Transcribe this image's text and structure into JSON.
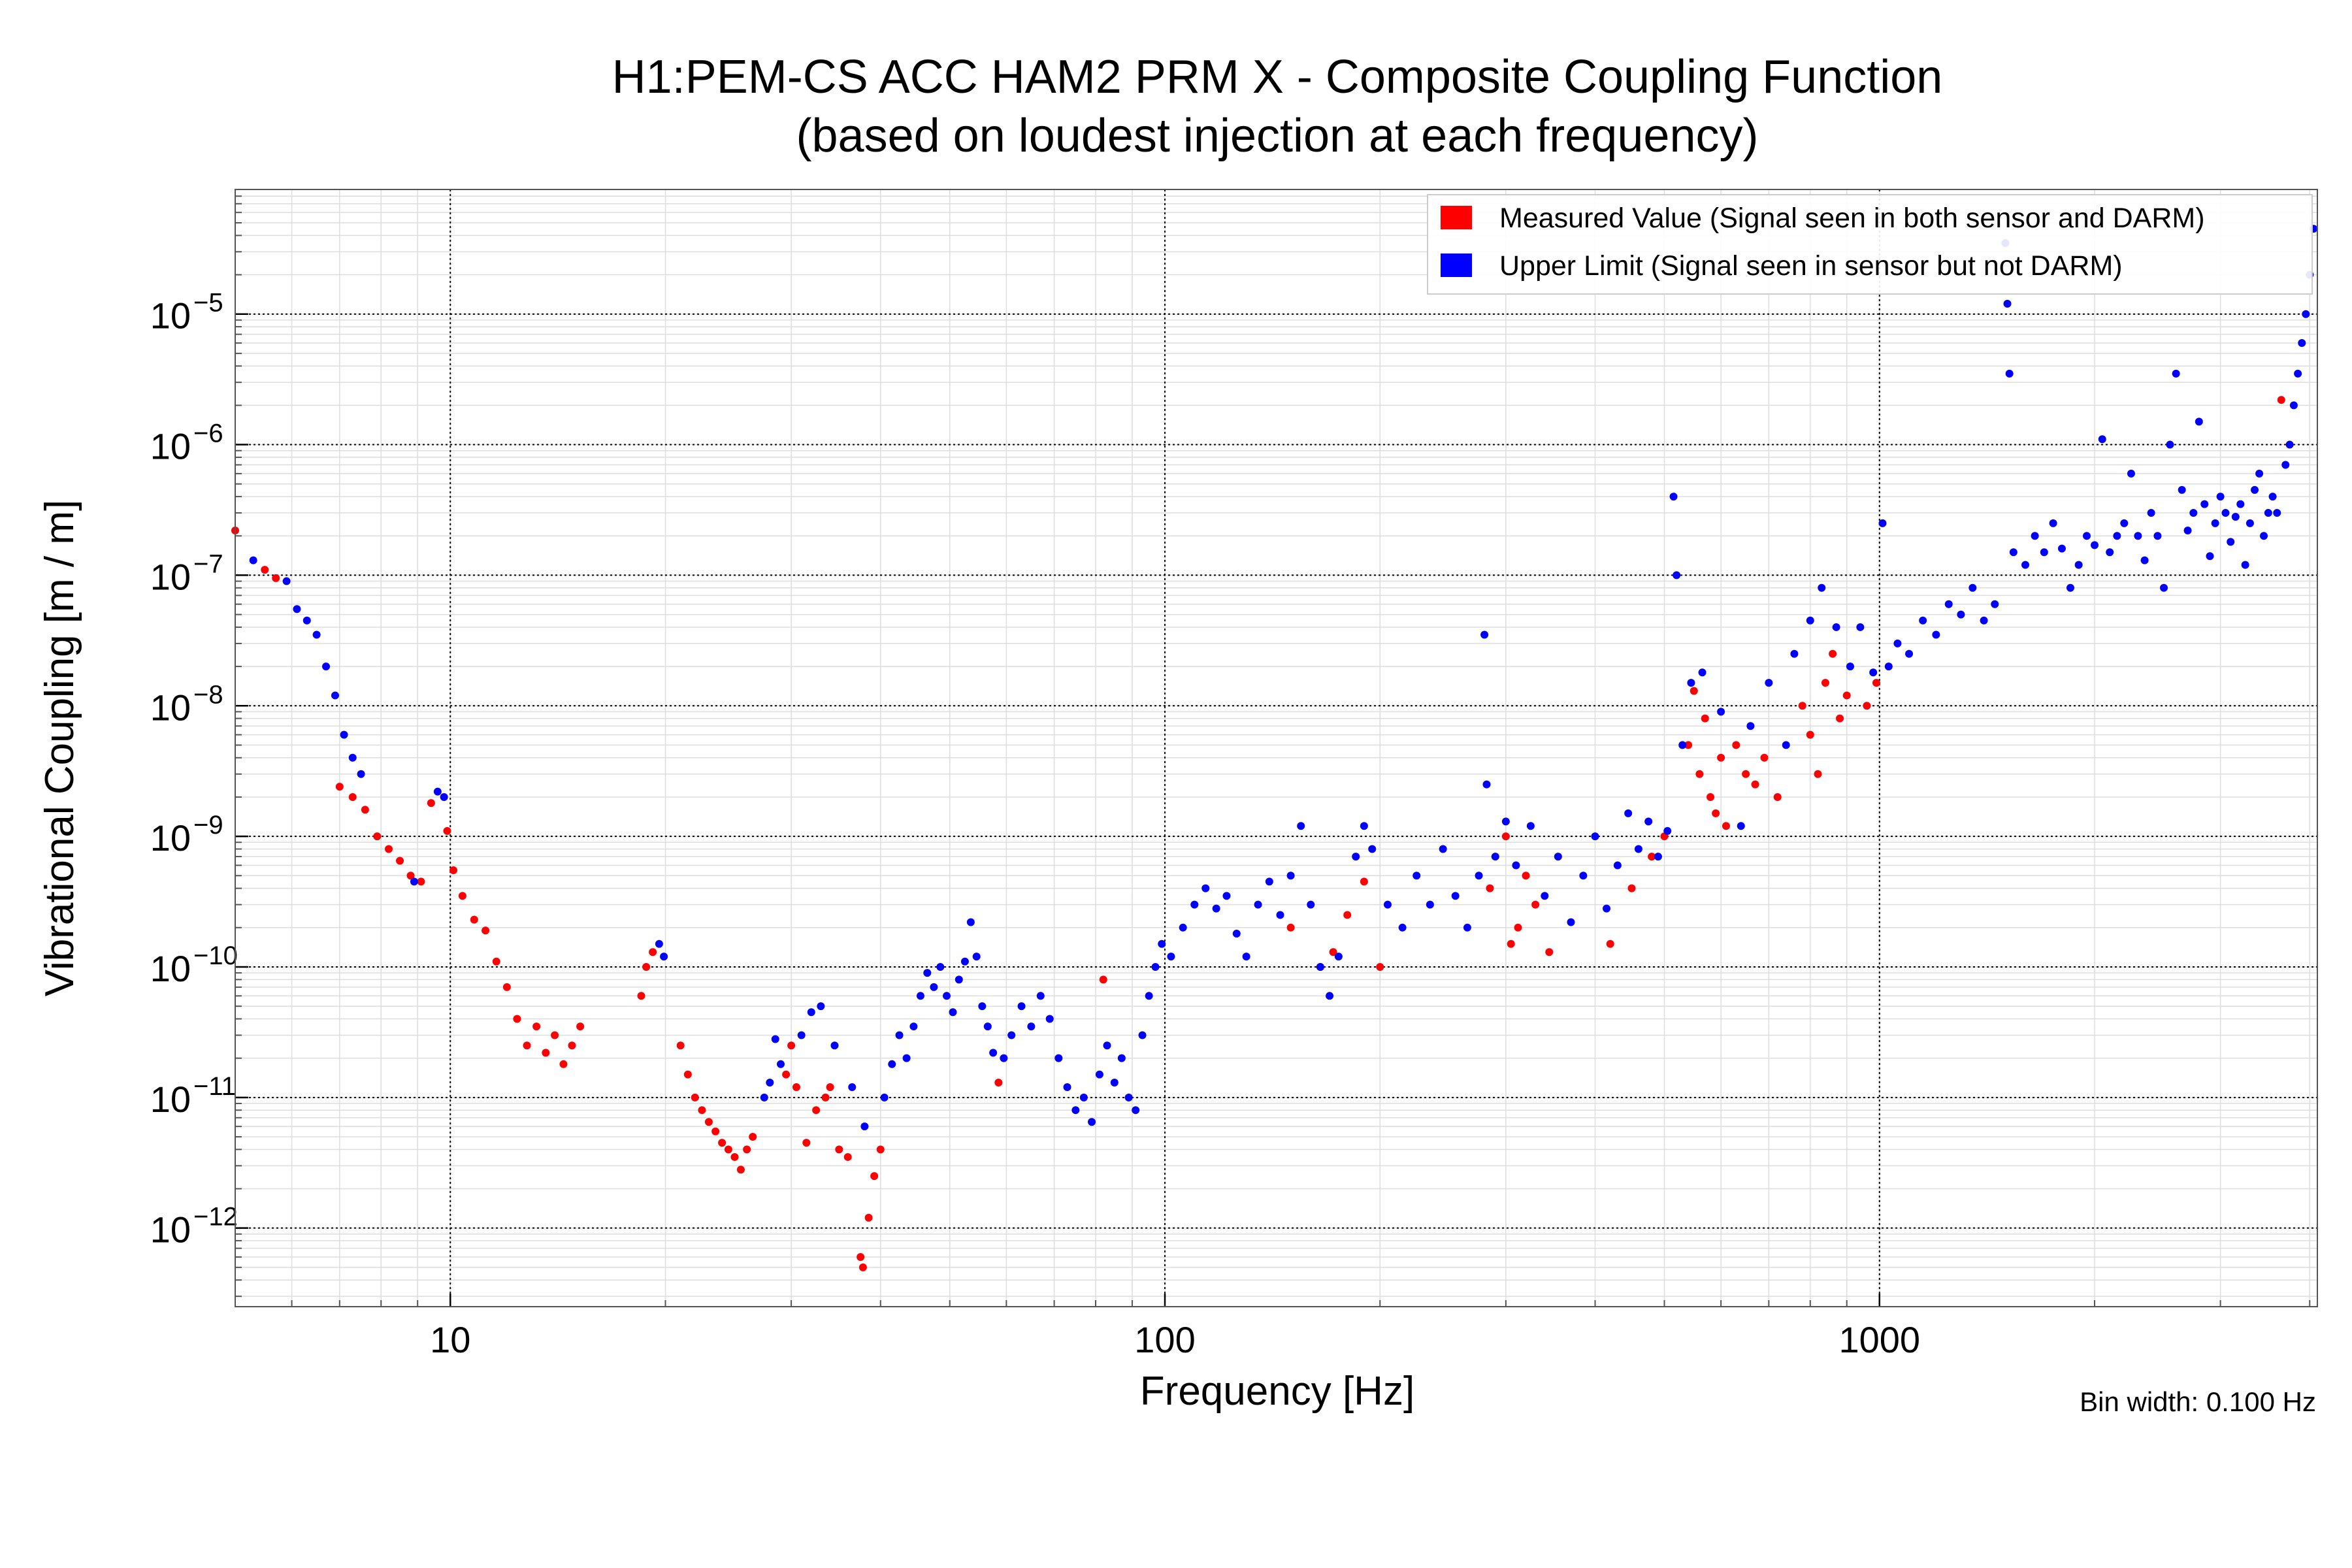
{
  "chart_data": {
    "type": "scatter",
    "title": "H1:PEM-CS ACC HAM2 PRM X - Composite Coupling Function",
    "subtitle": "(based on loudest injection at each frequency)",
    "xlabel": "Frequency [Hz]",
    "ylabel": "Vibrational Coupling [m / m]",
    "xscale": "log",
    "yscale": "log",
    "xlim": [
      5,
      4100
    ],
    "ylim": [
      2.5e-13,
      9e-05
    ],
    "x_ticks": [
      {
        "value": 10,
        "label": "10"
      },
      {
        "value": 100,
        "label": "100"
      },
      {
        "value": 1000,
        "label": "1000"
      }
    ],
    "y_ticks": [
      {
        "value": 1e-05,
        "base": "10",
        "exp": "−5"
      },
      {
        "value": 1e-06,
        "base": "10",
        "exp": "−6"
      },
      {
        "value": 1e-07,
        "base": "10",
        "exp": "−7"
      },
      {
        "value": 1e-08,
        "base": "10",
        "exp": "−8"
      },
      {
        "value": 1e-09,
        "base": "10",
        "exp": "−9"
      },
      {
        "value": 1e-10,
        "base": "10",
        "exp": "−10"
      },
      {
        "value": 1e-11,
        "base": "10",
        "exp": "−11"
      },
      {
        "value": 1e-12,
        "base": "10",
        "exp": "−12"
      }
    ],
    "grid": true,
    "legend_position": "top-right",
    "annotation": "Bin width: 0.100 Hz",
    "series": [
      {
        "name": "Measured Value (Signal seen in both sensor and DARM)",
        "color": "#ff0000",
        "points": [
          [
            5.0,
            2.2e-07
          ],
          [
            5.5,
            1.1e-07
          ],
          [
            5.7,
            9.5e-08
          ],
          [
            7.0,
            2.4e-09
          ],
          [
            7.3,
            2e-09
          ],
          [
            7.6,
            1.6e-09
          ],
          [
            7.9,
            1e-09
          ],
          [
            8.2,
            8e-10
          ],
          [
            8.5,
            6.5e-10
          ],
          [
            8.8,
            5e-10
          ],
          [
            9.1,
            4.5e-10
          ],
          [
            9.4,
            1.8e-09
          ],
          [
            9.9,
            1.1e-09
          ],
          [
            10.1,
            5.5e-10
          ],
          [
            10.4,
            3.5e-10
          ],
          [
            10.8,
            2.3e-10
          ],
          [
            11.2,
            1.9e-10
          ],
          [
            11.6,
            1.1e-10
          ],
          [
            12.0,
            7e-11
          ],
          [
            12.4,
            4e-11
          ],
          [
            12.8,
            2.5e-11
          ],
          [
            13.2,
            3.5e-11
          ],
          [
            13.6,
            2.2e-11
          ],
          [
            14.0,
            3e-11
          ],
          [
            14.4,
            1.8e-11
          ],
          [
            14.8,
            2.5e-11
          ],
          [
            15.2,
            3.5e-11
          ],
          [
            18.5,
            6e-11
          ],
          [
            18.8,
            1e-10
          ],
          [
            19.2,
            1.3e-10
          ],
          [
            21.0,
            2.5e-11
          ],
          [
            21.5,
            1.5e-11
          ],
          [
            22.0,
            1e-11
          ],
          [
            22.5,
            8e-12
          ],
          [
            23.0,
            6.5e-12
          ],
          [
            23.5,
            5.5e-12
          ],
          [
            24.0,
            4.5e-12
          ],
          [
            24.5,
            4e-12
          ],
          [
            25.0,
            3.5e-12
          ],
          [
            25.5,
            2.8e-12
          ],
          [
            26.0,
            4e-12
          ],
          [
            26.5,
            5e-12
          ],
          [
            29.5,
            1.5e-11
          ],
          [
            30.0,
            2.5e-11
          ],
          [
            30.5,
            1.2e-11
          ],
          [
            31.5,
            4.5e-12
          ],
          [
            32.5,
            8e-12
          ],
          [
            33.5,
            1e-11
          ],
          [
            34.0,
            1.2e-11
          ],
          [
            35.0,
            4e-12
          ],
          [
            36.0,
            3.5e-12
          ],
          [
            37.5,
            6e-13
          ],
          [
            37.8,
            5e-13
          ],
          [
            38.5,
            1.2e-12
          ],
          [
            39.2,
            2.5e-12
          ],
          [
            40.0,
            4e-12
          ],
          [
            58.5,
            1.3e-11
          ],
          [
            82.0,
            8e-11
          ],
          [
            150,
            2e-10
          ],
          [
            165,
            1e-10
          ],
          [
            172,
            1.3e-10
          ],
          [
            180,
            2.5e-10
          ],
          [
            190,
            4.5e-10
          ],
          [
            200,
            1e-10
          ],
          [
            285,
            4e-10
          ],
          [
            300,
            1e-09
          ],
          [
            305,
            1.5e-10
          ],
          [
            312,
            2e-10
          ],
          [
            320,
            5e-10
          ],
          [
            330,
            3e-10
          ],
          [
            345,
            1.3e-10
          ],
          [
            420,
            1.5e-10
          ],
          [
            450,
            4e-10
          ],
          [
            480,
            7e-10
          ],
          [
            500,
            1e-09
          ],
          [
            540,
            5e-09
          ],
          [
            550,
            1.3e-08
          ],
          [
            560,
            3e-09
          ],
          [
            570,
            8e-09
          ],
          [
            580,
            2e-09
          ],
          [
            590,
            1.5e-09
          ],
          [
            600,
            4e-09
          ],
          [
            610,
            1.2e-09
          ],
          [
            630,
            5e-09
          ],
          [
            650,
            3e-09
          ],
          [
            670,
            2.5e-09
          ],
          [
            690,
            4e-09
          ],
          [
            720,
            2e-09
          ],
          [
            780,
            1e-08
          ],
          [
            800,
            6e-09
          ],
          [
            820,
            3e-09
          ],
          [
            840,
            1.5e-08
          ],
          [
            860,
            2.5e-08
          ],
          [
            880,
            8e-09
          ],
          [
            900,
            1.2e-08
          ],
          [
            960,
            1e-08
          ],
          [
            990,
            1.5e-08
          ],
          [
            3650,
            2.2e-06
          ]
        ]
      },
      {
        "name": "Upper Limit (Signal seen in sensor but not DARM)",
        "color": "#0000ff",
        "points": [
          [
            5.3,
            1.3e-07
          ],
          [
            5.9,
            9e-08
          ],
          [
            6.1,
            5.5e-08
          ],
          [
            6.3,
            4.5e-08
          ],
          [
            6.5,
            3.5e-08
          ],
          [
            6.7,
            2e-08
          ],
          [
            6.9,
            1.2e-08
          ],
          [
            7.1,
            6e-09
          ],
          [
            7.3,
            4e-09
          ],
          [
            7.5,
            3e-09
          ],
          [
            9.6,
            2.2e-09
          ],
          [
            9.8,
            2e-09
          ],
          [
            8.9,
            4.5e-10
          ],
          [
            19.6,
            1.5e-10
          ],
          [
            19.9,
            1.2e-10
          ],
          [
            27.5,
            1e-11
          ],
          [
            28.0,
            1.3e-11
          ],
          [
            28.5,
            2.8e-11
          ],
          [
            29.0,
            1.8e-11
          ],
          [
            31.0,
            3e-11
          ],
          [
            32.0,
            4.5e-11
          ],
          [
            33.0,
            5e-11
          ],
          [
            34.5,
            2.5e-11
          ],
          [
            36.5,
            1.2e-11
          ],
          [
            38.0,
            6e-12
          ],
          [
            40.5,
            1e-11
          ],
          [
            41.5,
            1.8e-11
          ],
          [
            42.5,
            3e-11
          ],
          [
            43.5,
            2e-11
          ],
          [
            44.5,
            3.5e-11
          ],
          [
            45.5,
            6e-11
          ],
          [
            46.5,
            9e-11
          ],
          [
            47.5,
            7e-11
          ],
          [
            48.5,
            1e-10
          ],
          [
            49.5,
            6e-11
          ],
          [
            50.5,
            4.5e-11
          ],
          [
            51.5,
            8e-11
          ],
          [
            52.5,
            1.1e-10
          ],
          [
            53.5,
            2.2e-10
          ],
          [
            54.5,
            1.2e-10
          ],
          [
            55.5,
            5e-11
          ],
          [
            56.5,
            3.5e-11
          ],
          [
            57.5,
            2.2e-11
          ],
          [
            59.5,
            2e-11
          ],
          [
            61,
            3e-11
          ],
          [
            63,
            5e-11
          ],
          [
            65,
            3.5e-11
          ],
          [
            67,
            6e-11
          ],
          [
            69,
            4e-11
          ],
          [
            71,
            2e-11
          ],
          [
            73,
            1.2e-11
          ],
          [
            75,
            8e-12
          ],
          [
            77,
            1e-11
          ],
          [
            79,
            6.5e-12
          ],
          [
            81,
            1.5e-11
          ],
          [
            83,
            2.5e-11
          ],
          [
            85,
            1.3e-11
          ],
          [
            87,
            2e-11
          ],
          [
            89,
            1e-11
          ],
          [
            91,
            8e-12
          ],
          [
            93,
            3e-11
          ],
          [
            95,
            6e-11
          ],
          [
            97,
            1e-10
          ],
          [
            99,
            1.5e-10
          ],
          [
            102,
            1.2e-10
          ],
          [
            106,
            2e-10
          ],
          [
            110,
            3e-10
          ],
          [
            114,
            4e-10
          ],
          [
            118,
            2.8e-10
          ],
          [
            122,
            3.5e-10
          ],
          [
            126,
            1.8e-10
          ],
          [
            130,
            1.2e-10
          ],
          [
            135,
            3e-10
          ],
          [
            140,
            4.5e-10
          ],
          [
            145,
            2.5e-10
          ],
          [
            150,
            5e-10
          ],
          [
            155,
            1.2e-09
          ],
          [
            160,
            3e-10
          ],
          [
            165,
            1e-10
          ],
          [
            170,
            6e-11
          ],
          [
            175,
            1.2e-10
          ],
          [
            185,
            7e-10
          ],
          [
            190,
            1.2e-09
          ],
          [
            195,
            8e-10
          ],
          [
            205,
            3e-10
          ],
          [
            215,
            2e-10
          ],
          [
            225,
            5e-10
          ],
          [
            235,
            3e-10
          ],
          [
            245,
            8e-10
          ],
          [
            255,
            3.5e-10
          ],
          [
            265,
            2e-10
          ],
          [
            275,
            5e-10
          ],
          [
            280,
            3.5e-08
          ],
          [
            282,
            2.5e-09
          ],
          [
            290,
            7e-10
          ],
          [
            300,
            1.3e-09
          ],
          [
            310,
            6e-10
          ],
          [
            325,
            1.2e-09
          ],
          [
            340,
            3.5e-10
          ],
          [
            355,
            7e-10
          ],
          [
            370,
            2.2e-10
          ],
          [
            385,
            5e-10
          ],
          [
            400,
            1e-09
          ],
          [
            415,
            2.8e-10
          ],
          [
            430,
            6e-10
          ],
          [
            445,
            1.5e-09
          ],
          [
            460,
            8e-10
          ],
          [
            475,
            1.3e-09
          ],
          [
            490,
            7e-10
          ],
          [
            505,
            1.1e-09
          ],
          [
            515,
            4e-07
          ],
          [
            520,
            1e-07
          ],
          [
            530,
            5e-09
          ],
          [
            545,
            1.5e-08
          ],
          [
            565,
            1.8e-08
          ],
          [
            600,
            9e-09
          ],
          [
            640,
            1.2e-09
          ],
          [
            660,
            7e-09
          ],
          [
            700,
            1.5e-08
          ],
          [
            740,
            5e-09
          ],
          [
            760,
            2.5e-08
          ],
          [
            800,
            4.5e-08
          ],
          [
            830,
            8e-08
          ],
          [
            870,
            4e-08
          ],
          [
            910,
            2e-08
          ],
          [
            940,
            4e-08
          ],
          [
            980,
            1.8e-08
          ],
          [
            1010,
            2.5e-07
          ],
          [
            1030,
            2e-08
          ],
          [
            1060,
            3e-08
          ],
          [
            1100,
            2.5e-08
          ],
          [
            1150,
            4.5e-08
          ],
          [
            1200,
            3.5e-08
          ],
          [
            1250,
            6e-08
          ],
          [
            1300,
            5e-08
          ],
          [
            1350,
            8e-08
          ],
          [
            1400,
            4.5e-08
          ],
          [
            1450,
            6e-08
          ],
          [
            1500,
            3.5e-05
          ],
          [
            1510,
            1.2e-05
          ],
          [
            1520,
            3.5e-06
          ],
          [
            1540,
            1.5e-07
          ],
          [
            1600,
            1.2e-07
          ],
          [
            1650,
            2e-07
          ],
          [
            1700,
            1.5e-07
          ],
          [
            1750,
            2.5e-07
          ],
          [
            1800,
            1.6e-07
          ],
          [
            1850,
            8e-08
          ],
          [
            1900,
            1.2e-07
          ],
          [
            1950,
            2e-07
          ],
          [
            2000,
            1.7e-07
          ],
          [
            2050,
            1.1e-06
          ],
          [
            2100,
            1.5e-07
          ],
          [
            2150,
            2e-07
          ],
          [
            2200,
            2.5e-07
          ],
          [
            2250,
            6e-07
          ],
          [
            2300,
            2e-07
          ],
          [
            2350,
            1.3e-07
          ],
          [
            2400,
            3e-07
          ],
          [
            2450,
            2e-07
          ],
          [
            2500,
            8e-08
          ],
          [
            2550,
            1e-06
          ],
          [
            2600,
            3.5e-06
          ],
          [
            2650,
            4.5e-07
          ],
          [
            2700,
            2.2e-07
          ],
          [
            2750,
            3e-07
          ],
          [
            2800,
            1.5e-06
          ],
          [
            2850,
            3.5e-07
          ],
          [
            2900,
            1.4e-07
          ],
          [
            2950,
            2.5e-07
          ],
          [
            3000,
            4e-07
          ],
          [
            3050,
            3e-07
          ],
          [
            3100,
            1.8e-07
          ],
          [
            3150,
            2.8e-07
          ],
          [
            3200,
            3.5e-07
          ],
          [
            3250,
            1.2e-07
          ],
          [
            3300,
            2.5e-07
          ],
          [
            3350,
            4.5e-07
          ],
          [
            3400,
            6e-07
          ],
          [
            3450,
            2e-07
          ],
          [
            3500,
            3e-07
          ],
          [
            3550,
            4e-07
          ],
          [
            3600,
            3e-07
          ],
          [
            3700,
            7e-07
          ],
          [
            3750,
            1e-06
          ],
          [
            3800,
            2e-06
          ],
          [
            3850,
            3.5e-06
          ],
          [
            3900,
            6e-06
          ],
          [
            3950,
            1e-05
          ],
          [
            4000,
            2e-05
          ],
          [
            4050,
            4.5e-05
          ]
        ]
      }
    ]
  }
}
